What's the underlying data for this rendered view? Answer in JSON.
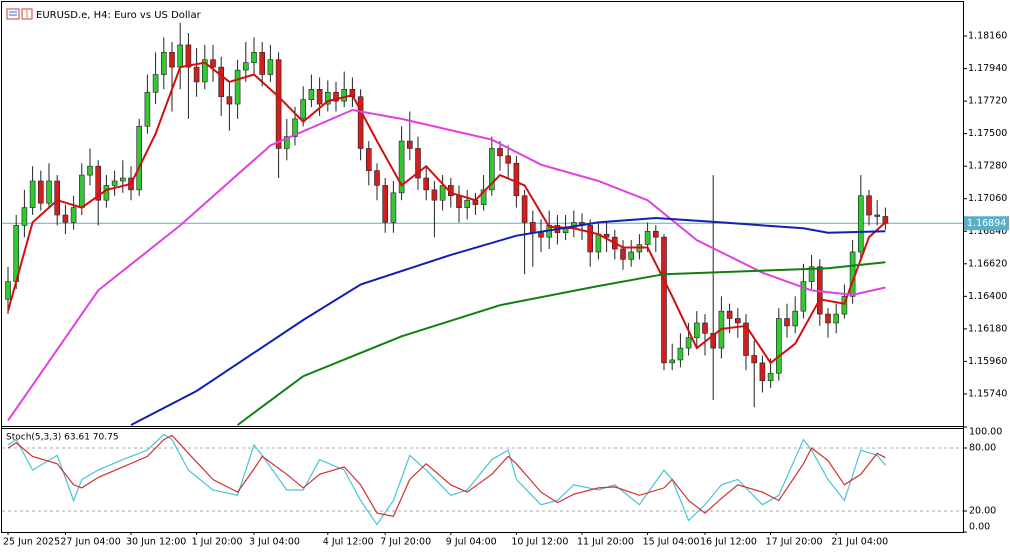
{
  "chart_data": [
    {
      "type": "candlestick",
      "title": "EURUSD.e, H4:  Euro vs US Dollar",
      "categories": [
        "25 Jun 2025",
        null,
        null,
        null,
        null,
        null,
        null,
        "27 Jun 04:00",
        null,
        null,
        null,
        null,
        null,
        null,
        null,
        "30 Jun 12:00",
        null,
        null,
        null,
        null,
        null,
        null,
        null,
        "1 Jul 20:00",
        null,
        null,
        null,
        null,
        null,
        null,
        "3 Jul 04:00",
        null,
        null,
        null,
        null,
        null,
        null,
        null,
        null,
        "4 Jul 12:00",
        null,
        null,
        null,
        null,
        null,
        null,
        "7 Jul 20:00",
        null,
        null,
        null,
        null,
        null,
        null,
        null,
        "9 Jul 04:00",
        null,
        null,
        null,
        null,
        null,
        null,
        null,
        "10 Jul 12:00",
        null,
        null,
        null,
        null,
        null,
        null,
        null,
        "11 Jul 20:00",
        null,
        null,
        null,
        null,
        null,
        null,
        null,
        "15 Jul 04:00",
        null,
        null,
        null,
        null,
        null,
        null,
        "16 Jul 12:00",
        null,
        null,
        null,
        null,
        null,
        null,
        null,
        "17 Jul 20:00",
        null,
        null,
        null,
        null,
        null,
        null,
        null,
        "21 Jul 04:00",
        null,
        null,
        null,
        null,
        null,
        null
      ],
      "open": [
        1.1638,
        1.165,
        1.1688,
        1.17,
        1.1718,
        1.1703,
        1.1718,
        1.1695,
        1.169,
        1.17,
        1.1722,
        1.1728,
        1.1705,
        1.1715,
        1.1718,
        1.172,
        1.1712,
        1.1755,
        1.1778,
        1.179,
        1.1805,
        1.1795,
        1.181,
        1.1795,
        1.1785,
        1.18,
        1.1795,
        1.1775,
        1.177,
        1.1793,
        1.1798,
        1.1805,
        1.179,
        1.18,
        1.174,
        1.1748,
        1.176,
        1.1773,
        1.178,
        1.177,
        1.1778,
        1.1772,
        1.178,
        1.1775,
        1.174,
        1.1725,
        1.1715,
        1.169,
        1.171,
        1.1745,
        1.174,
        1.172,
        1.1712,
        1.1705,
        1.1715,
        1.1708,
        1.17,
        1.1705,
        1.1702,
        1.1712,
        1.174,
        1.1735,
        1.173,
        1.1708,
        1.169,
        1.1683,
        1.168,
        1.1688,
        1.1683,
        1.1686,
        1.169,
        1.1688,
        1.167,
        1.1682,
        1.168,
        1.1672,
        1.1665,
        1.167,
        1.1675,
        1.1684,
        1.168,
        1.1595,
        1.1597,
        1.1605,
        1.1612,
        1.1622,
        1.1615,
        1.1605,
        1.163,
        1.1625,
        1.1622,
        1.16,
        1.1595,
        1.1583,
        1.1588,
        1.1625,
        1.162,
        1.163,
        1.165,
        1.166,
        1.1628,
        1.1622,
        1.1628,
        1.164,
        1.167,
        1.1708,
        1.1695,
        1.1694
      ],
      "high": [
        1.166,
        1.1695,
        1.1712,
        1.1728,
        1.1725,
        1.173,
        1.1722,
        1.1702,
        1.1708,
        1.173,
        1.174,
        1.1732,
        1.1722,
        1.1725,
        1.1732,
        1.1728,
        1.176,
        1.179,
        1.1805,
        1.1815,
        1.1812,
        1.1825,
        1.1818,
        1.1808,
        1.181,
        1.181,
        1.1802,
        1.1785,
        1.18,
        1.1812,
        1.1815,
        1.1812,
        1.181,
        1.1805,
        1.176,
        1.1768,
        1.1782,
        1.179,
        1.1788,
        1.1786,
        1.1785,
        1.1792,
        1.1788,
        1.178,
        1.1745,
        1.173,
        1.172,
        1.1718,
        1.1755,
        1.1765,
        1.1748,
        1.1728,
        1.1718,
        1.1722,
        1.172,
        1.1715,
        1.1712,
        1.171,
        1.1722,
        1.1748,
        1.1745,
        1.1742,
        1.1735,
        1.1712,
        1.1698,
        1.1692,
        1.1698,
        1.1695,
        1.1695,
        1.1698,
        1.1696,
        1.1692,
        1.169,
        1.169,
        1.1685,
        1.1678,
        1.1678,
        1.1682,
        1.169,
        1.1688,
        1.1682,
        1.1608,
        1.1615,
        1.1622,
        1.163,
        1.1628,
        1.1722,
        1.164,
        1.1635,
        1.1632,
        1.1628,
        1.161,
        1.16,
        1.1598,
        1.1632,
        1.1635,
        1.164,
        1.1662,
        1.1668,
        1.1665,
        1.1632,
        1.1635,
        1.1648,
        1.1678,
        1.1722,
        1.1712,
        1.1705,
        1.17
      ],
      "low": [
        1.1628,
        1.1645,
        1.168,
        1.1695,
        1.1698,
        1.17,
        1.1688,
        1.1682,
        1.1685,
        1.1695,
        1.1715,
        1.1688,
        1.17,
        1.1708,
        1.171,
        1.1705,
        1.1708,
        1.175,
        1.177,
        1.178,
        1.1765,
        1.178,
        1.176,
        1.1775,
        1.178,
        1.1785,
        1.1762,
        1.1752,
        1.176,
        1.1785,
        1.179,
        1.1782,
        1.1785,
        1.172,
        1.1732,
        1.1742,
        1.1755,
        1.1768,
        1.1762,
        1.1765,
        1.1765,
        1.1768,
        1.1768,
        1.1732,
        1.1715,
        1.1705,
        1.1683,
        1.1683,
        1.1705,
        1.1732,
        1.1712,
        1.1705,
        1.168,
        1.1698,
        1.17,
        1.169,
        1.1692,
        1.1695,
        1.1698,
        1.1708,
        1.1725,
        1.172,
        1.17,
        1.1655,
        1.166,
        1.167,
        1.1672,
        1.1675,
        1.1678,
        1.168,
        1.1678,
        1.166,
        1.1665,
        1.167,
        1.1665,
        1.1658,
        1.166,
        1.1665,
        1.167,
        1.167,
        1.159,
        1.159,
        1.1592,
        1.16,
        1.1605,
        1.16,
        1.157,
        1.1598,
        1.1615,
        1.1612,
        1.159,
        1.1565,
        1.1575,
        1.1578,
        1.1583,
        1.1612,
        1.1615,
        1.1625,
        1.1645,
        1.162,
        1.1612,
        1.1615,
        1.1625,
        1.1635,
        1.1665,
        1.1688,
        1.1688,
        1.1685
      ],
      "close": [
        1.165,
        1.1688,
        1.17,
        1.1718,
        1.1703,
        1.1718,
        1.1695,
        1.169,
        1.17,
        1.1722,
        1.1728,
        1.1705,
        1.1715,
        1.1718,
        1.172,
        1.1712,
        1.1755,
        1.1778,
        1.179,
        1.1805,
        1.1795,
        1.181,
        1.1795,
        1.1785,
        1.18,
        1.1795,
        1.1775,
        1.177,
        1.1793,
        1.1798,
        1.1805,
        1.179,
        1.18,
        1.174,
        1.1748,
        1.176,
        1.1773,
        1.178,
        1.177,
        1.1778,
        1.1772,
        1.178,
        1.1775,
        1.174,
        1.1725,
        1.1715,
        1.169,
        1.171,
        1.1745,
        1.174,
        1.172,
        1.1712,
        1.1705,
        1.1715,
        1.1708,
        1.17,
        1.1705,
        1.1702,
        1.1712,
        1.174,
        1.1735,
        1.173,
        1.1708,
        1.169,
        1.1683,
        1.168,
        1.1688,
        1.1683,
        1.1686,
        1.169,
        1.1688,
        1.167,
        1.1682,
        1.168,
        1.1672,
        1.1665,
        1.167,
        1.1675,
        1.1684,
        1.168,
        1.1595,
        1.1597,
        1.1605,
        1.1612,
        1.1622,
        1.1615,
        1.1605,
        1.163,
        1.1625,
        1.1622,
        1.16,
        1.1595,
        1.1583,
        1.1588,
        1.1625,
        1.162,
        1.163,
        1.165,
        1.166,
        1.1628,
        1.1622,
        1.1628,
        1.164,
        1.167,
        1.1708,
        1.1695,
        1.1694,
        1.16894
      ],
      "up_color": "#32c832",
      "down_color": "#d21e1e",
      "lines": [
        {
          "color": "#d01010",
          "x": [
            0,
            3,
            6,
            9,
            12,
            15,
            18,
            21,
            24,
            27,
            30,
            33,
            36,
            39,
            42,
            45,
            48,
            51,
            54,
            57,
            60,
            63,
            66,
            69,
            72,
            75,
            78,
            81,
            84,
            87,
            90,
            93,
            96,
            99,
            102,
            105,
            107
          ],
          "values": [
            1.163,
            1.169,
            1.1705,
            1.17,
            1.1712,
            1.1716,
            1.175,
            1.1795,
            1.1798,
            1.1785,
            1.179,
            1.1775,
            1.1758,
            1.1772,
            1.1776,
            1.1745,
            1.1715,
            1.1728,
            1.171,
            1.1705,
            1.1722,
            1.1715,
            1.1687,
            1.1686,
            1.1682,
            1.1673,
            1.1673,
            1.164,
            1.1605,
            1.1618,
            1.162,
            1.1595,
            1.1608,
            1.1638,
            1.1635,
            1.168,
            1.169
          ]
        },
        {
          "color": "#e040e0",
          "x": [
            0,
            11,
            21,
            32,
            42,
            48,
            59,
            65,
            72,
            78,
            84,
            92,
            98,
            103,
            107
          ],
          "values": [
            1.1556,
            1.1644,
            1.1688,
            1.1742,
            1.1766,
            1.176,
            1.1746,
            1.1729,
            1.1718,
            1.1705,
            1.1678,
            1.1656,
            1.1644,
            1.1641,
            1.1646
          ]
        },
        {
          "color": "#1020b0",
          "x": [
            15,
            23,
            36,
            43,
            54,
            62,
            72,
            79,
            87,
            97,
            100,
            107
          ],
          "values": [
            1.1553,
            1.1576,
            1.1624,
            1.1648,
            1.1668,
            1.1681,
            1.169,
            1.1693,
            1.169,
            1.1686,
            1.1683,
            1.1684
          ]
        },
        {
          "color": "#108010",
          "x": [
            28,
            36,
            48,
            60,
            72,
            80,
            90,
            100,
            107
          ],
          "values": [
            1.1553,
            1.1586,
            1.1613,
            1.1634,
            1.1647,
            1.1655,
            1.1657,
            1.1659,
            1.1663
          ]
        }
      ],
      "current_price": 1.16894,
      "current_color": "#5aaec8",
      "ylim": [
        1.1553,
        1.1837
      ],
      "yticks": [
        {
          "value": 1.1816,
          "label": "1.18160"
        },
        {
          "value": 1.1794,
          "label": "1.17940"
        },
        {
          "value": 1.1772,
          "label": "1.17720"
        },
        {
          "value": 1.175,
          "label": "1.17500"
        },
        {
          "value": 1.1728,
          "label": "1.17280"
        },
        {
          "value": 1.1706,
          "label": "1.17060"
        },
        {
          "value": 1.1684,
          "label": "1.16840"
        },
        {
          "value": 1.1662,
          "label": "1.16620"
        },
        {
          "value": 1.164,
          "label": "1.16400"
        },
        {
          "value": 1.1618,
          "label": "1.16180"
        },
        {
          "value": 1.1596,
          "label": "1.15960"
        },
        {
          "value": 1.1574,
          "label": "1.15740"
        }
      ]
    },
    {
      "type": "line",
      "label": "Stoch(5,3,3) 63.61 70.75",
      "series": [
        {
          "color": "#48c4d4",
          "x": [
            0,
            1,
            3,
            6,
            8,
            9,
            11,
            14,
            17,
            19,
            20,
            22,
            25,
            28,
            30,
            31,
            34,
            36,
            38,
            41,
            43,
            45,
            47,
            49,
            51,
            54,
            56,
            59,
            61,
            62,
            65,
            67,
            69,
            72,
            74,
            77,
            80,
            81,
            83,
            85,
            87,
            89,
            92,
            94,
            97,
            98,
            100,
            102,
            104,
            106,
            107
          ],
          "values": [
            83,
            88,
            59,
            73,
            30,
            50,
            59,
            69,
            78,
            93,
            88,
            59,
            40,
            35,
            83,
            73,
            40,
            40,
            69,
            59,
            30,
            7,
            30,
            73,
            59,
            35,
            40,
            69,
            78,
            50,
            26,
            30,
            45,
            40,
            45,
            26,
            59,
            50,
            11,
            26,
            45,
            50,
            26,
            35,
            88,
            78,
            50,
            30,
            78,
            73,
            63.61
          ]
        },
        {
          "color": "#d03030",
          "x": [
            0,
            1,
            3,
            6,
            8,
            9,
            11,
            14,
            17,
            19,
            20,
            22,
            25,
            28,
            30,
            31,
            34,
            36,
            38,
            41,
            43,
            45,
            47,
            49,
            51,
            54,
            56,
            59,
            61,
            62,
            65,
            67,
            69,
            72,
            74,
            77,
            80,
            81,
            83,
            85,
            87,
            89,
            92,
            94,
            97,
            98,
            100,
            102,
            104,
            106,
            107
          ],
          "values": [
            80,
            85,
            72,
            65,
            45,
            42,
            52,
            62,
            72,
            88,
            92,
            75,
            50,
            38,
            60,
            72,
            55,
            42,
            55,
            62,
            45,
            18,
            15,
            50,
            65,
            45,
            38,
            55,
            72,
            65,
            38,
            28,
            36,
            42,
            43,
            35,
            42,
            50,
            30,
            18,
            32,
            45,
            38,
            30,
            65,
            80,
            68,
            45,
            55,
            75,
            70.75
          ]
        }
      ],
      "levels": [
        80,
        20
      ],
      "ylim": [
        0,
        100
      ],
      "yticks": [
        {
          "value": 100,
          "label": "100.00"
        },
        {
          "value": 80,
          "label": "80.00"
        },
        {
          "value": 20,
          "label": "20.00"
        },
        {
          "value": 0,
          "label": "0.00"
        }
      ]
    }
  ]
}
